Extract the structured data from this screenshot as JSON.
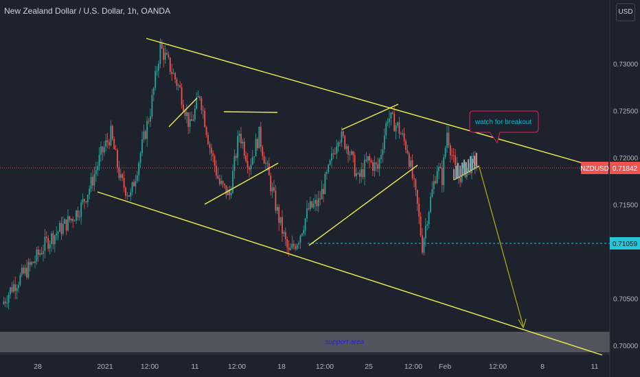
{
  "header": {
    "title": "New Zealand Dollar / U.S. Dollar, 1h, OANDA",
    "currency": "USD"
  },
  "chart_data": {
    "type": "candlestick",
    "symbol": "NZDUSD",
    "ylim": [
      0.6992,
      0.734
    ],
    "y_ticks": [
      {
        "value": 0.73,
        "label": "0.73000"
      },
      {
        "value": 0.725,
        "label": "0.72500"
      },
      {
        "value": 0.72,
        "label": "0.72000"
      },
      {
        "value": 0.715,
        "label": "0.71500"
      },
      {
        "value": 0.705,
        "label": "0.70500"
      },
      {
        "value": 0.7,
        "label": "0.70000"
      }
    ],
    "x_ticks": [
      "28",
      "2021",
      "12:00",
      "11",
      "12:00",
      "18",
      "12:00",
      "25",
      "12:00",
      "Feb",
      "12:00",
      "8",
      "11"
    ],
    "current_price": {
      "value": 0.71842,
      "label": "0.71842",
      "tag": "NZDUSD"
    },
    "support_level": {
      "value": 0.71059,
      "label": "0.71059"
    },
    "support_area": {
      "from": 0.7,
      "to": 0.702,
      "label": "support area"
    },
    "callout": {
      "text": "watch for breakout"
    },
    "colors": {
      "up": "#26a69a",
      "down": "#ef5350",
      "trendline": "#f1f14a",
      "support_line": "#26c6da",
      "price_tag": "#ef5350",
      "callout_border": "#e91e63",
      "callout_text": "#00bcd4",
      "support_area_text": "#1f1ff0",
      "projection": "#b6b600"
    },
    "swings": [
      [
        0,
        0.7044
      ],
      [
        2,
        0.7062
      ],
      [
        6,
        0.7086
      ],
      [
        9,
        0.711
      ],
      [
        11,
        0.712
      ],
      [
        14,
        0.7135
      ],
      [
        16,
        0.7148
      ],
      [
        18,
        0.7172
      ],
      [
        20,
        0.7203
      ],
      [
        22,
        0.7225
      ],
      [
        24,
        0.7175
      ],
      [
        26,
        0.7159
      ],
      [
        28,
        0.7205
      ],
      [
        30,
        0.725
      ],
      [
        32,
        0.7318
      ],
      [
        34,
        0.7296
      ],
      [
        36,
        0.7272
      ],
      [
        38,
        0.7232
      ],
      [
        40,
        0.7268
      ],
      [
        42,
        0.7212
      ],
      [
        44,
        0.7172
      ],
      [
        46,
        0.716
      ],
      [
        48,
        0.7227
      ],
      [
        50,
        0.7192
      ],
      [
        52,
        0.7224
      ],
      [
        54,
        0.7178
      ],
      [
        56,
        0.7135
      ],
      [
        58,
        0.7097
      ],
      [
        60,
        0.7115
      ],
      [
        62,
        0.7145
      ],
      [
        64,
        0.7152
      ],
      [
        66,
        0.7185
      ],
      [
        68,
        0.7225
      ],
      [
        70,
        0.7212
      ],
      [
        72,
        0.7176
      ],
      [
        74,
        0.7197
      ],
      [
        76,
        0.7188
      ],
      [
        78,
        0.7244
      ],
      [
        80,
        0.7233
      ],
      [
        82,
        0.7209
      ],
      [
        84,
        0.7148
      ],
      [
        85,
        0.7106
      ],
      [
        86,
        0.7138
      ],
      [
        88,
        0.719
      ],
      [
        89,
        0.7178
      ],
      [
        90,
        0.7228
      ],
      [
        92,
        0.7178
      ],
      [
        94,
        0.7189
      ],
      [
        96,
        0.7197
      ]
    ]
  }
}
